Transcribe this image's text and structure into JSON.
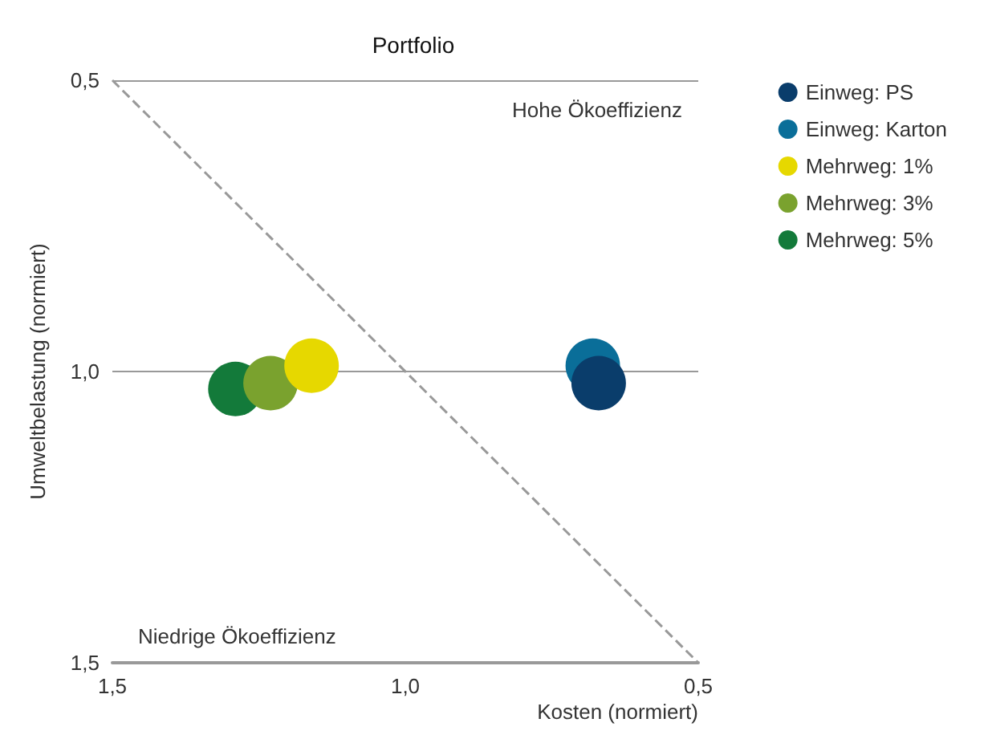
{
  "chart_data": {
    "type": "scatter",
    "title": "Portfolio",
    "xlabel": "Kosten (normiert)",
    "ylabel": "Umweltbelastung (normiert)",
    "annotations": [
      "Hohe Ökoeffizienz",
      "Niedrige Ökoeffizienz"
    ],
    "xlim": [
      1.5,
      0.5
    ],
    "ylim": [
      1.5,
      0.5
    ],
    "xticks": [
      {
        "value": 1.5,
        "label": "1,5"
      },
      {
        "value": 1.0,
        "label": "1,0"
      },
      {
        "value": 0.5,
        "label": "0,5"
      }
    ],
    "yticks": [
      {
        "value": 1.5,
        "label": "1,5"
      },
      {
        "value": 1.0,
        "label": "1,0"
      },
      {
        "value": 0.5,
        "label": "0,5"
      }
    ],
    "grid": "y",
    "legend": "right",
    "marker": "circle",
    "series": [
      {
        "name": "Einweg: PS",
        "color": "#0a3d6b",
        "x": [
          0.67
        ],
        "values": [
          1.02
        ]
      },
      {
        "name": "Einweg: Karton",
        "color": "#0a6e99",
        "x": [
          0.68
        ],
        "values": [
          0.99
        ]
      },
      {
        "name": "Mehrweg: 1%",
        "color": "#e6d800",
        "x": [
          1.16
        ],
        "values": [
          0.99
        ]
      },
      {
        "name": "Mehrweg: 3%",
        "color": "#7aa22e",
        "x": [
          1.23
        ],
        "values": [
          1.02
        ]
      },
      {
        "name": "Mehrweg: 5%",
        "color": "#137a3a",
        "x": [
          1.29
        ],
        "values": [
          1.03
        ]
      },
      {
        "type": "line",
        "color": "#999999",
        "line_style": "dashed",
        "marker": "none",
        "x": [
          1.5,
          0.5
        ],
        "values": [
          0.5,
          1.5
        ]
      }
    ]
  }
}
